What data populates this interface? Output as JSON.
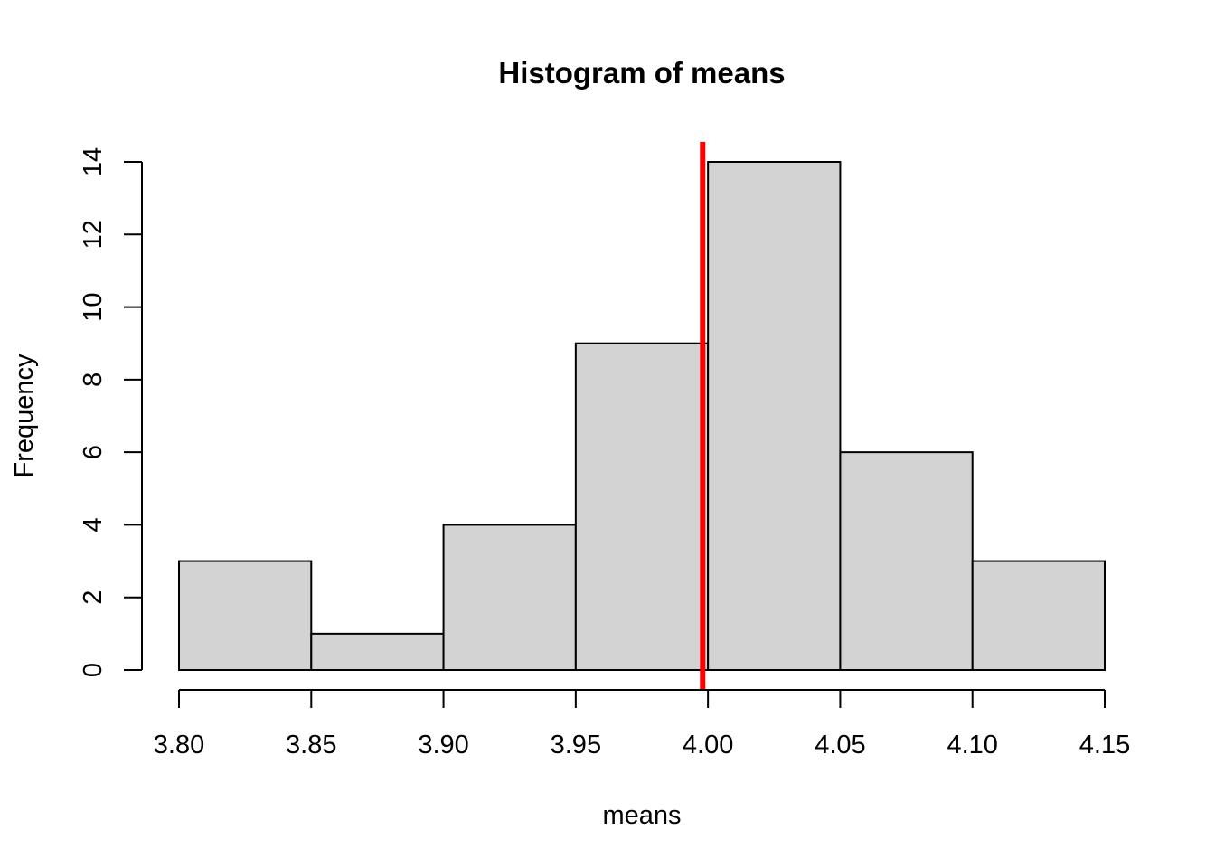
{
  "chart_data": {
    "type": "bar",
    "title": "Histogram of means",
    "xlabel": "means",
    "ylabel": "Frequency",
    "bins": [
      {
        "from": 3.8,
        "to": 3.85,
        "count": 3
      },
      {
        "from": 3.85,
        "to": 3.9,
        "count": 1
      },
      {
        "from": 3.9,
        "to": 3.95,
        "count": 4
      },
      {
        "from": 3.95,
        "to": 4.0,
        "count": 9
      },
      {
        "from": 4.0,
        "to": 4.05,
        "count": 14
      },
      {
        "from": 4.05,
        "to": 4.1,
        "count": 6
      },
      {
        "from": 4.1,
        "to": 4.15,
        "count": 3
      }
    ],
    "xlim": [
      3.8,
      4.15
    ],
    "ylim": [
      0,
      14
    ],
    "x_ticks": [
      "3.80",
      "3.85",
      "3.90",
      "3.95",
      "4.00",
      "4.05",
      "4.10",
      "4.15"
    ],
    "y_ticks": [
      "0",
      "2",
      "4",
      "6",
      "8",
      "10",
      "12",
      "14"
    ],
    "vertical_line": {
      "x": 3.998,
      "color": "#ff0000"
    },
    "bar_fill": "#d3d3d3",
    "bar_stroke": "#000000",
    "grid": false
  }
}
